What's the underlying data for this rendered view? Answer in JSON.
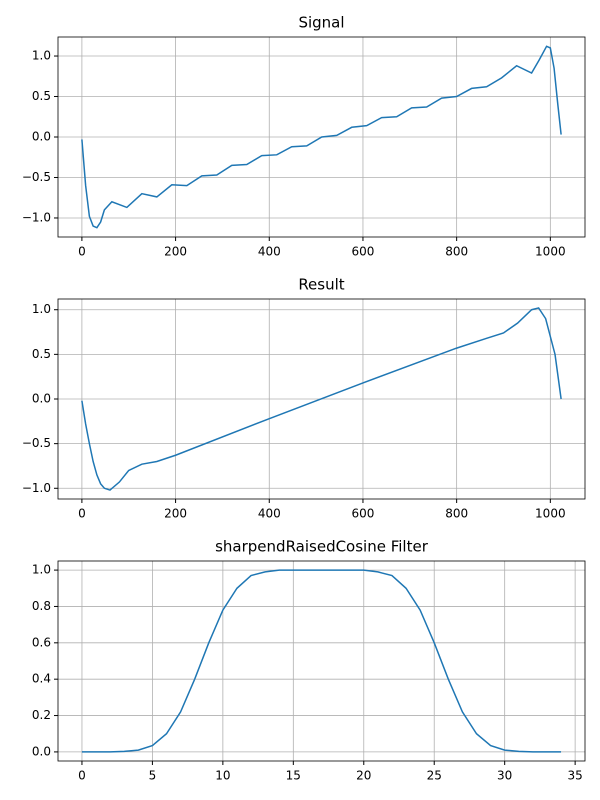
{
  "chart_data": [
    {
      "type": "line",
      "title": "Signal",
      "x": [
        0,
        8,
        16,
        24,
        32,
        40,
        48,
        64,
        96,
        128,
        160,
        192,
        224,
        256,
        288,
        320,
        352,
        384,
        416,
        448,
        480,
        512,
        544,
        576,
        608,
        640,
        672,
        704,
        736,
        768,
        800,
        832,
        864,
        896,
        928,
        960,
        976,
        992,
        1000,
        1008,
        1016,
        1023
      ],
      "series": [
        {
          "color": "#1f77b4",
          "values": [
            -0.03,
            -0.6,
            -0.98,
            -1.1,
            -1.12,
            -1.05,
            -0.9,
            -0.8,
            -0.87,
            -0.7,
            -0.74,
            -0.59,
            -0.6,
            -0.48,
            -0.47,
            -0.35,
            -0.34,
            -0.23,
            -0.22,
            -0.12,
            -0.11,
            0.0,
            0.02,
            0.12,
            0.14,
            0.24,
            0.25,
            0.36,
            0.37,
            0.48,
            0.5,
            0.6,
            0.62,
            0.73,
            0.88,
            0.79,
            0.95,
            1.12,
            1.1,
            0.85,
            0.4,
            0.03
          ]
        }
      ],
      "xlim": [
        -51,
        1074
      ],
      "ylim": [
        -1.235,
        1.235
      ],
      "xticks": [
        0,
        200,
        400,
        600,
        800,
        1000
      ],
      "yticks": [
        {
          "value": -1.0,
          "label": "−1.0"
        },
        {
          "value": -0.5,
          "label": "−0.5"
        },
        {
          "value": 0.0,
          "label": "0.0"
        },
        {
          "value": 0.5,
          "label": "0.5"
        },
        {
          "value": 1.0,
          "label": "1.0"
        }
      ],
      "grid": true
    },
    {
      "type": "line",
      "title": "Result",
      "x": [
        0,
        8,
        16,
        24,
        32,
        40,
        48,
        60,
        80,
        100,
        128,
        160,
        200,
        400,
        600,
        800,
        864,
        900,
        930,
        960,
        975,
        990,
        1010,
        1023
      ],
      "series": [
        {
          "color": "#1f77b4",
          "values": [
            -0.02,
            -0.28,
            -0.5,
            -0.7,
            -0.85,
            -0.95,
            -1.0,
            -1.02,
            -0.93,
            -0.8,
            -0.73,
            -0.7,
            -0.63,
            -0.22,
            0.18,
            0.57,
            0.68,
            0.74,
            0.85,
            1.0,
            1.02,
            0.9,
            0.5,
            0.0
          ]
        }
      ],
      "xlim": [
        -51,
        1074
      ],
      "ylim": [
        -1.12,
        1.12
      ],
      "xticks": [
        0,
        200,
        400,
        600,
        800,
        1000
      ],
      "yticks": [
        {
          "value": -1.0,
          "label": "−1.0"
        },
        {
          "value": -0.5,
          "label": "−0.5"
        },
        {
          "value": 0.0,
          "label": "0.0"
        },
        {
          "value": 0.5,
          "label": "0.5"
        },
        {
          "value": 1.0,
          "label": "1.0"
        }
      ],
      "grid": true
    },
    {
      "type": "line",
      "title": "sharpendRaisedCosine Filter",
      "x": [
        0,
        1,
        2,
        3,
        4,
        5,
        6,
        7,
        8,
        9,
        10,
        11,
        12,
        13,
        14,
        15,
        16,
        17,
        18,
        19,
        20,
        21,
        22,
        23,
        24,
        25,
        26,
        27,
        28,
        29,
        30,
        31,
        32,
        33,
        34
      ],
      "series": [
        {
          "color": "#1f77b4",
          "values": [
            0,
            0,
            0,
            0.003,
            0.01,
            0.035,
            0.1,
            0.22,
            0.4,
            0.6,
            0.78,
            0.9,
            0.97,
            0.99,
            1,
            1,
            1,
            1,
            1,
            1,
            1,
            0.99,
            0.97,
            0.9,
            0.78,
            0.6,
            0.4,
            0.22,
            0.1,
            0.035,
            0.01,
            0.003,
            0,
            0,
            0
          ]
        }
      ],
      "xlim": [
        -1.7,
        35.7
      ],
      "ylim": [
        -0.05,
        1.05
      ],
      "xticks": [
        0,
        5,
        10,
        15,
        20,
        25,
        30,
        35
      ],
      "yticks": [
        {
          "value": 0.0,
          "label": "0.0"
        },
        {
          "value": 0.2,
          "label": "0.2"
        },
        {
          "value": 0.4,
          "label": "0.4"
        },
        {
          "value": 0.6,
          "label": "0.6"
        },
        {
          "value": 0.8,
          "label": "0.8"
        },
        {
          "value": 1.0,
          "label": "1.0"
        }
      ],
      "grid": true
    }
  ]
}
